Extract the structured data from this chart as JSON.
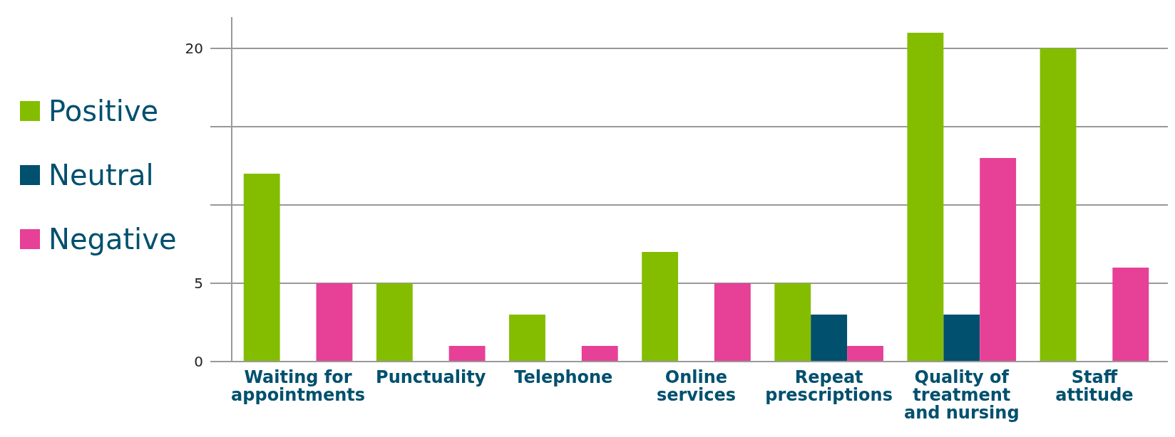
{
  "chart_data": {
    "type": "bar",
    "categories": [
      "Waiting for appointments",
      "Punctuality",
      "Telephone",
      "Online services",
      "Repeat prescriptions",
      "Quality of treatment and nursing",
      "Staff attitude"
    ],
    "series": [
      {
        "name": "Positive",
        "color": "#84bd00",
        "values": [
          12,
          5,
          3,
          7,
          5,
          21,
          20
        ]
      },
      {
        "name": "Neutral",
        "color": "#00506e",
        "values": [
          0,
          0,
          0,
          0,
          3,
          3,
          0
        ]
      },
      {
        "name": "Negative",
        "color": "#e64097",
        "values": [
          5,
          1,
          1,
          5,
          1,
          13,
          6
        ]
      }
    ],
    "ylim": [
      0,
      22
    ],
    "yticks": [
      0,
      5,
      {
        "value": 10,
        "label": null
      },
      {
        "value": 15,
        "label": null
      },
      20
    ],
    "grid": "y",
    "legend": "left"
  }
}
